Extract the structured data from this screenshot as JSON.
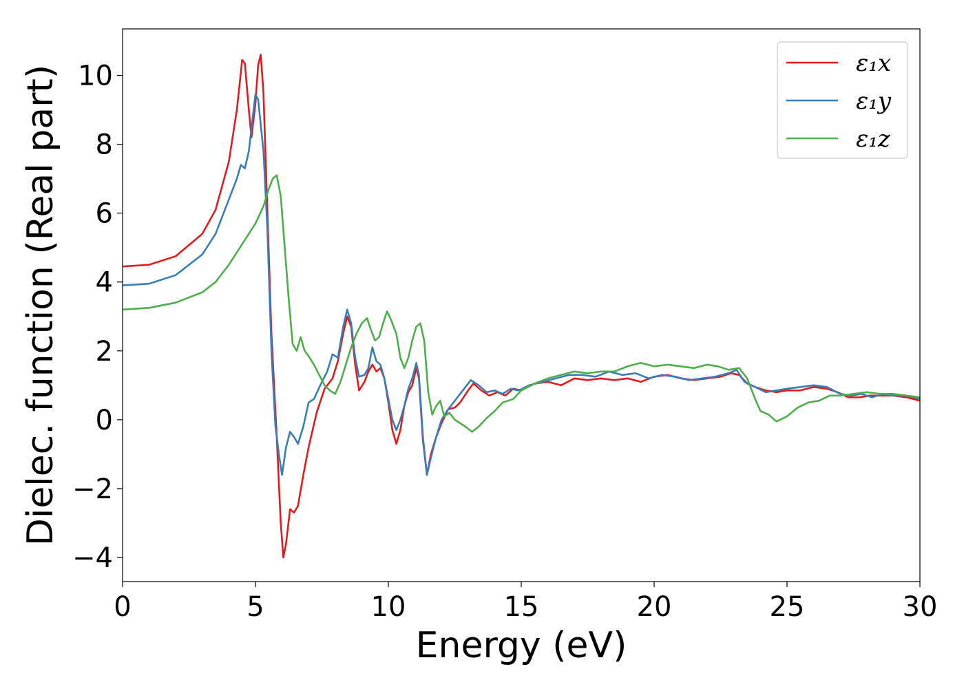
{
  "chart_data": {
    "type": "line",
    "title": "",
    "xlabel": "Energy (eV)",
    "ylabel": "Dielec. function (Real part)",
    "xlim": [
      0,
      30
    ],
    "ylim": [
      -4.7,
      11.35
    ],
    "xticks": [
      0,
      5,
      10,
      15,
      20,
      25,
      30
    ],
    "xtick_labels": [
      "0",
      "5",
      "10",
      "15",
      "20",
      "25",
      "30"
    ],
    "yticks": [
      -4,
      -2,
      0,
      2,
      4,
      6,
      8,
      10
    ],
    "ytick_labels": [
      "−4",
      "−2",
      "0",
      "2",
      "4",
      "6",
      "8",
      "10"
    ],
    "grid": false,
    "legend_position": "top-right",
    "series": [
      {
        "name": "ε₁x",
        "color": "#e41a1c",
        "points": [
          [
            0,
            4.45
          ],
          [
            1,
            4.5
          ],
          [
            2,
            4.75
          ],
          [
            3,
            5.4
          ],
          [
            3.5,
            6.1
          ],
          [
            4,
            7.5
          ],
          [
            4.3,
            9.0
          ],
          [
            4.5,
            10.45
          ],
          [
            4.6,
            10.35
          ],
          [
            4.75,
            9.0
          ],
          [
            4.85,
            8.2
          ],
          [
            5.0,
            9.2
          ],
          [
            5.1,
            10.3
          ],
          [
            5.2,
            10.6
          ],
          [
            5.3,
            9.5
          ],
          [
            5.45,
            6.0
          ],
          [
            5.6,
            2.5
          ],
          [
            5.8,
            -0.5
          ],
          [
            5.95,
            -3.0
          ],
          [
            6.05,
            -4.0
          ],
          [
            6.15,
            -3.6
          ],
          [
            6.3,
            -2.6
          ],
          [
            6.45,
            -2.7
          ],
          [
            6.6,
            -2.5
          ],
          [
            6.8,
            -1.6
          ],
          [
            7.0,
            -0.8
          ],
          [
            7.3,
            0.2
          ],
          [
            7.6,
            0.9
          ],
          [
            7.9,
            1.2
          ],
          [
            8.1,
            1.7
          ],
          [
            8.3,
            2.5
          ],
          [
            8.45,
            3.0
          ],
          [
            8.6,
            2.7
          ],
          [
            8.75,
            1.6
          ],
          [
            8.9,
            0.85
          ],
          [
            9.1,
            1.1
          ],
          [
            9.25,
            1.4
          ],
          [
            9.4,
            1.6
          ],
          [
            9.55,
            1.4
          ],
          [
            9.7,
            1.5
          ],
          [
            9.85,
            1.2
          ],
          [
            10.0,
            0.5
          ],
          [
            10.15,
            -0.3
          ],
          [
            10.3,
            -0.7
          ],
          [
            10.45,
            -0.3
          ],
          [
            10.6,
            0.4
          ],
          [
            10.75,
            0.8
          ],
          [
            10.9,
            1.0
          ],
          [
            11.05,
            1.5
          ],
          [
            11.15,
            1.2
          ],
          [
            11.3,
            -0.6
          ],
          [
            11.45,
            -1.6
          ],
          [
            11.6,
            -1.0
          ],
          [
            11.8,
            -0.5
          ],
          [
            12.0,
            -0.1
          ],
          [
            12.25,
            0.3
          ],
          [
            12.5,
            0.35
          ],
          [
            12.7,
            0.5
          ],
          [
            13.0,
            0.85
          ],
          [
            13.2,
            1.05
          ],
          [
            13.5,
            0.85
          ],
          [
            13.8,
            0.7
          ],
          [
            14.1,
            0.8
          ],
          [
            14.4,
            0.7
          ],
          [
            14.7,
            0.9
          ],
          [
            15.0,
            0.85
          ],
          [
            15.5,
            1.05
          ],
          [
            16.0,
            1.1
          ],
          [
            16.5,
            1.0
          ],
          [
            17.0,
            1.2
          ],
          [
            17.5,
            1.15
          ],
          [
            18.0,
            1.2
          ],
          [
            18.5,
            1.15
          ],
          [
            19.0,
            1.2
          ],
          [
            19.5,
            1.1
          ],
          [
            20.0,
            1.25
          ],
          [
            20.5,
            1.3
          ],
          [
            21.0,
            1.2
          ],
          [
            21.5,
            1.15
          ],
          [
            22.0,
            1.2
          ],
          [
            22.5,
            1.25
          ],
          [
            22.9,
            1.35
          ],
          [
            23.2,
            1.3
          ],
          [
            23.5,
            1.05
          ],
          [
            23.8,
            0.95
          ],
          [
            24.2,
            0.85
          ],
          [
            24.6,
            0.8
          ],
          [
            25.0,
            0.85
          ],
          [
            25.5,
            0.85
          ],
          [
            26.0,
            0.95
          ],
          [
            26.5,
            0.9
          ],
          [
            26.9,
            0.8
          ],
          [
            27.3,
            0.65
          ],
          [
            27.7,
            0.65
          ],
          [
            28.1,
            0.7
          ],
          [
            28.5,
            0.7
          ],
          [
            29.0,
            0.7
          ],
          [
            29.5,
            0.65
          ],
          [
            30.0,
            0.55
          ]
        ]
      },
      {
        "name": "ε₁y",
        "color": "#377eb8",
        "points": [
          [
            0,
            3.9
          ],
          [
            1,
            3.95
          ],
          [
            2,
            4.2
          ],
          [
            3,
            4.8
          ],
          [
            3.5,
            5.4
          ],
          [
            4.0,
            6.4
          ],
          [
            4.3,
            7.0
          ],
          [
            4.45,
            7.4
          ],
          [
            4.6,
            7.3
          ],
          [
            4.75,
            7.8
          ],
          [
            4.9,
            8.8
          ],
          [
            5.0,
            9.45
          ],
          [
            5.1,
            9.3
          ],
          [
            5.3,
            7.8
          ],
          [
            5.45,
            5.5
          ],
          [
            5.6,
            2.0
          ],
          [
            5.75,
            -0.2
          ],
          [
            5.9,
            -1.1
          ],
          [
            6.0,
            -1.6
          ],
          [
            6.15,
            -0.8
          ],
          [
            6.3,
            -0.35
          ],
          [
            6.45,
            -0.5
          ],
          [
            6.6,
            -0.7
          ],
          [
            6.8,
            -0.2
          ],
          [
            7.0,
            0.5
          ],
          [
            7.2,
            0.6
          ],
          [
            7.5,
            1.1
          ],
          [
            7.7,
            1.4
          ],
          [
            7.9,
            1.9
          ],
          [
            8.1,
            1.8
          ],
          [
            8.3,
            2.7
          ],
          [
            8.45,
            3.2
          ],
          [
            8.6,
            2.8
          ],
          [
            8.75,
            1.8
          ],
          [
            8.9,
            1.25
          ],
          [
            9.1,
            1.3
          ],
          [
            9.25,
            1.5
          ],
          [
            9.4,
            2.1
          ],
          [
            9.55,
            1.7
          ],
          [
            9.7,
            1.6
          ],
          [
            9.85,
            1.2
          ],
          [
            10.0,
            0.6
          ],
          [
            10.15,
            0.0
          ],
          [
            10.3,
            -0.3
          ],
          [
            10.45,
            0.0
          ],
          [
            10.6,
            0.4
          ],
          [
            10.75,
            0.9
          ],
          [
            10.9,
            1.2
          ],
          [
            11.05,
            1.65
          ],
          [
            11.15,
            1.3
          ],
          [
            11.3,
            -0.5
          ],
          [
            11.45,
            -1.6
          ],
          [
            11.6,
            -1.1
          ],
          [
            11.8,
            -0.5
          ],
          [
            12.0,
            0.0
          ],
          [
            12.25,
            0.3
          ],
          [
            12.5,
            0.55
          ],
          [
            12.8,
            0.85
          ],
          [
            13.1,
            1.15
          ],
          [
            13.4,
            1.0
          ],
          [
            13.7,
            0.8
          ],
          [
            14.0,
            0.85
          ],
          [
            14.3,
            0.75
          ],
          [
            14.6,
            0.9
          ],
          [
            14.9,
            0.85
          ],
          [
            15.3,
            1.0
          ],
          [
            15.8,
            1.1
          ],
          [
            16.3,
            1.2
          ],
          [
            16.8,
            1.3
          ],
          [
            17.3,
            1.3
          ],
          [
            17.8,
            1.25
          ],
          [
            18.3,
            1.4
          ],
          [
            18.8,
            1.3
          ],
          [
            19.3,
            1.35
          ],
          [
            19.8,
            1.2
          ],
          [
            20.3,
            1.3
          ],
          [
            20.8,
            1.25
          ],
          [
            21.3,
            1.15
          ],
          [
            21.8,
            1.2
          ],
          [
            22.3,
            1.25
          ],
          [
            22.8,
            1.35
          ],
          [
            23.1,
            1.45
          ],
          [
            23.4,
            1.1
          ],
          [
            23.8,
            0.95
          ],
          [
            24.2,
            0.8
          ],
          [
            24.6,
            0.85
          ],
          [
            25.0,
            0.9
          ],
          [
            25.5,
            0.95
          ],
          [
            26.0,
            1.0
          ],
          [
            26.5,
            0.95
          ],
          [
            27.0,
            0.75
          ],
          [
            27.4,
            0.7
          ],
          [
            27.8,
            0.75
          ],
          [
            28.2,
            0.65
          ],
          [
            28.6,
            0.75
          ],
          [
            29.0,
            0.7
          ],
          [
            29.5,
            0.7
          ],
          [
            30.0,
            0.6
          ]
        ]
      },
      {
        "name": "ε₁z",
        "color": "#4daf4a",
        "points": [
          [
            0,
            3.2
          ],
          [
            1,
            3.25
          ],
          [
            2,
            3.4
          ],
          [
            3,
            3.7
          ],
          [
            3.5,
            4.0
          ],
          [
            4.0,
            4.5
          ],
          [
            4.5,
            5.1
          ],
          [
            5.0,
            5.7
          ],
          [
            5.3,
            6.2
          ],
          [
            5.5,
            6.7
          ],
          [
            5.65,
            7.0
          ],
          [
            5.8,
            7.1
          ],
          [
            5.95,
            6.5
          ],
          [
            6.1,
            5.0
          ],
          [
            6.25,
            3.5
          ],
          [
            6.4,
            2.2
          ],
          [
            6.55,
            2.0
          ],
          [
            6.7,
            2.4
          ],
          [
            6.85,
            2.0
          ],
          [
            7.0,
            1.85
          ],
          [
            7.2,
            1.6
          ],
          [
            7.4,
            1.3
          ],
          [
            7.6,
            1.0
          ],
          [
            7.8,
            0.85
          ],
          [
            8.0,
            0.75
          ],
          [
            8.2,
            1.1
          ],
          [
            8.4,
            1.6
          ],
          [
            8.6,
            2.1
          ],
          [
            8.8,
            2.5
          ],
          [
            9.0,
            2.8
          ],
          [
            9.2,
            2.95
          ],
          [
            9.35,
            2.6
          ],
          [
            9.5,
            2.3
          ],
          [
            9.65,
            2.4
          ],
          [
            9.8,
            2.8
          ],
          [
            9.95,
            3.15
          ],
          [
            10.1,
            2.9
          ],
          [
            10.3,
            2.5
          ],
          [
            10.45,
            1.8
          ],
          [
            10.6,
            1.5
          ],
          [
            10.75,
            1.8
          ],
          [
            10.9,
            2.3
          ],
          [
            11.05,
            2.7
          ],
          [
            11.2,
            2.8
          ],
          [
            11.35,
            2.3
          ],
          [
            11.5,
            0.8
          ],
          [
            11.65,
            0.15
          ],
          [
            11.8,
            0.4
          ],
          [
            11.95,
            0.55
          ],
          [
            12.1,
            0.1
          ],
          [
            12.3,
            0.2
          ],
          [
            12.5,
            0.0
          ],
          [
            12.7,
            -0.1
          ],
          [
            12.9,
            -0.2
          ],
          [
            13.15,
            -0.35
          ],
          [
            13.4,
            -0.2
          ],
          [
            13.7,
            0.05
          ],
          [
            14.0,
            0.25
          ],
          [
            14.3,
            0.5
          ],
          [
            14.7,
            0.6
          ],
          [
            15.0,
            0.85
          ],
          [
            15.5,
            1.05
          ],
          [
            16.0,
            1.2
          ],
          [
            16.5,
            1.3
          ],
          [
            17.0,
            1.4
          ],
          [
            17.5,
            1.35
          ],
          [
            18.0,
            1.4
          ],
          [
            18.5,
            1.4
          ],
          [
            19.0,
            1.55
          ],
          [
            19.5,
            1.65
          ],
          [
            20.0,
            1.55
          ],
          [
            20.5,
            1.6
          ],
          [
            21.0,
            1.55
          ],
          [
            21.5,
            1.5
          ],
          [
            22.0,
            1.6
          ],
          [
            22.4,
            1.55
          ],
          [
            22.8,
            1.45
          ],
          [
            23.2,
            1.5
          ],
          [
            23.5,
            1.2
          ],
          [
            23.8,
            0.6
          ],
          [
            24.0,
            0.25
          ],
          [
            24.3,
            0.15
          ],
          [
            24.6,
            -0.05
          ],
          [
            25.0,
            0.1
          ],
          [
            25.4,
            0.35
          ],
          [
            25.8,
            0.5
          ],
          [
            26.2,
            0.55
          ],
          [
            26.6,
            0.7
          ],
          [
            27.0,
            0.7
          ],
          [
            27.5,
            0.75
          ],
          [
            28.0,
            0.8
          ],
          [
            28.5,
            0.75
          ],
          [
            29.0,
            0.75
          ],
          [
            29.5,
            0.7
          ],
          [
            30.0,
            0.65
          ]
        ]
      }
    ]
  }
}
